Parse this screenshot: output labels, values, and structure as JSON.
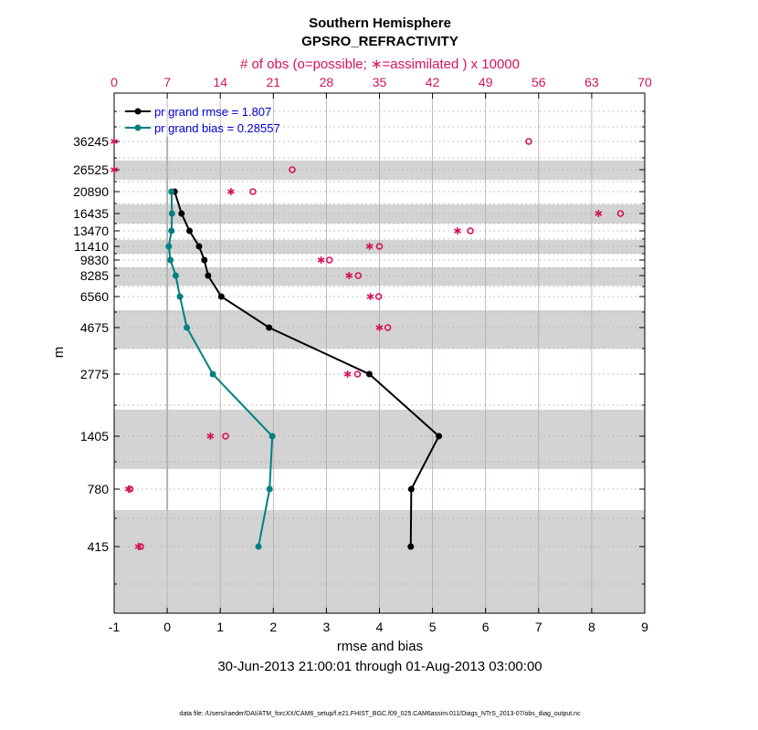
{
  "title": "Southern Hemisphere",
  "subtitle": "GPSRO_REFRACTIVITY",
  "top_axis_label": "# of obs (o=possible; ∗=assimilated ) x 10000",
  "xlabel": "rmse and bias",
  "ylabel": "m",
  "date_range": "30-Jun-2013 21:00:01 through 01-Aug-2013 03:00:00",
  "footer": "data file: /Users/raeder/DAI/ATM_forcXX/CAM6_setup/f.e21.FHIST_BGC.f09_025.CAM6assim.011/Diags_NTrS_2013-07/obs_diag_output.nc",
  "colors": {
    "rmse": "#000000",
    "bias": "#008080",
    "obs": "#d4145a",
    "band": "#d3d3d3",
    "zero_line": "#b3b3b3",
    "grid": "#b0b0b0"
  },
  "chart_data": {
    "type": "line",
    "x_range": [
      -1,
      9
    ],
    "x_ticks": [
      "-1",
      "0",
      "1",
      "2",
      "3",
      "4",
      "5",
      "6",
      "7",
      "8",
      "9"
    ],
    "top_x_range": [
      0,
      70
    ],
    "top_x_ticks": [
      "0",
      "7",
      "14",
      "21",
      "28",
      "35",
      "42",
      "49",
      "56",
      "63",
      "70"
    ],
    "levels": [
      "36245",
      "26525",
      "20890",
      "16435",
      "13470",
      "11410",
      "9830",
      "8285",
      "6560",
      "4675",
      "2775",
      "1405",
      "780",
      "415"
    ],
    "series": [
      {
        "name": "pr grand rmse = 1.807",
        "values": [
          null,
          null,
          0.14,
          0.27,
          0.42,
          0.6,
          0.7,
          0.77,
          1.02,
          1.92,
          3.81,
          5.12,
          4.6,
          4.59
        ]
      },
      {
        "name": "pr grand bias = 0.28557",
        "values": [
          null,
          null,
          0.08,
          0.09,
          0.08,
          0.03,
          0.06,
          0.16,
          0.24,
          0.37,
          0.86,
          1.98,
          1.93,
          1.72
        ]
      }
    ],
    "obs_possible": [
      54.7,
      23.5,
      18.3,
      66.8,
      47.0,
      35.0,
      28.4,
      32.2,
      34.9,
      36.1,
      32.1,
      14.7,
      2.1,
      3.5
    ],
    "obs_assimilated": [
      0.0,
      0.0,
      15.4,
      63.9,
      45.3,
      33.7,
      27.3,
      31.0,
      33.8,
      35.0,
      30.8,
      12.7,
      1.9,
      3.2
    ],
    "grey_band_levels": [
      "26525",
      "16435",
      "11410",
      "8285",
      "4675",
      "1405",
      "415"
    ]
  }
}
